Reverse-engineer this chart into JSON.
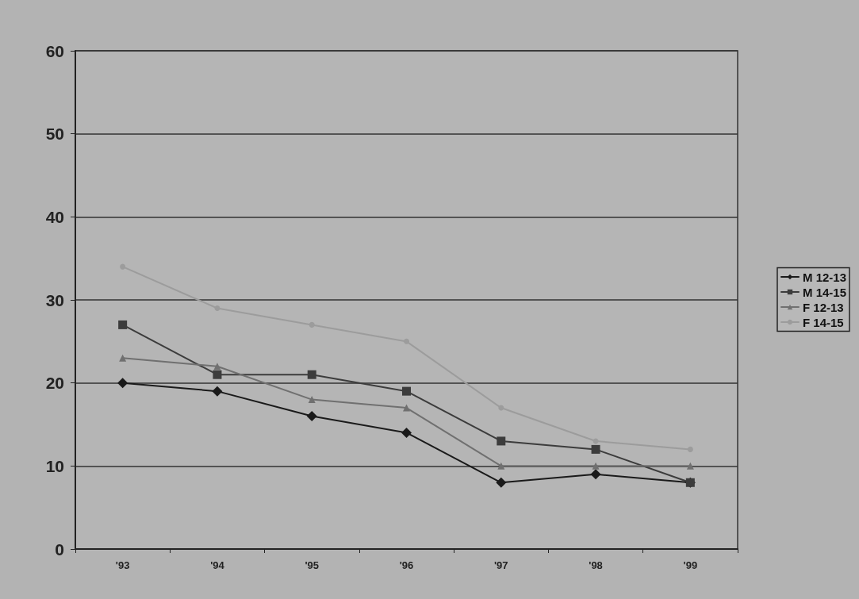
{
  "chart_data": {
    "type": "line",
    "categories": [
      "'93",
      "'94",
      "'95",
      "'96",
      "'97",
      "'98",
      "'99"
    ],
    "series": [
      {
        "name": "M 12-13",
        "color": "#1a1a1a",
        "marker": "diamond",
        "values": [
          20,
          19,
          16,
          14,
          8,
          9,
          8
        ]
      },
      {
        "name": "M 14-15",
        "color": "#3c3c3c",
        "marker": "square",
        "values": [
          27,
          21,
          21,
          19,
          13,
          12,
          8
        ]
      },
      {
        "name": "F 12-13",
        "color": "#707070",
        "marker": "triangle",
        "values": [
          23,
          22,
          18,
          17,
          10,
          10,
          10
        ]
      },
      {
        "name": "F 14-15",
        "color": "#9c9c9c",
        "marker": "circle",
        "values": [
          34,
          29,
          27,
          25,
          17,
          13,
          12
        ]
      }
    ],
    "ylim": [
      0,
      60
    ],
    "yticks": [
      0,
      10,
      20,
      30,
      40,
      50,
      60
    ],
    "grid": "y",
    "legend": "right",
    "line_style": "solid"
  }
}
